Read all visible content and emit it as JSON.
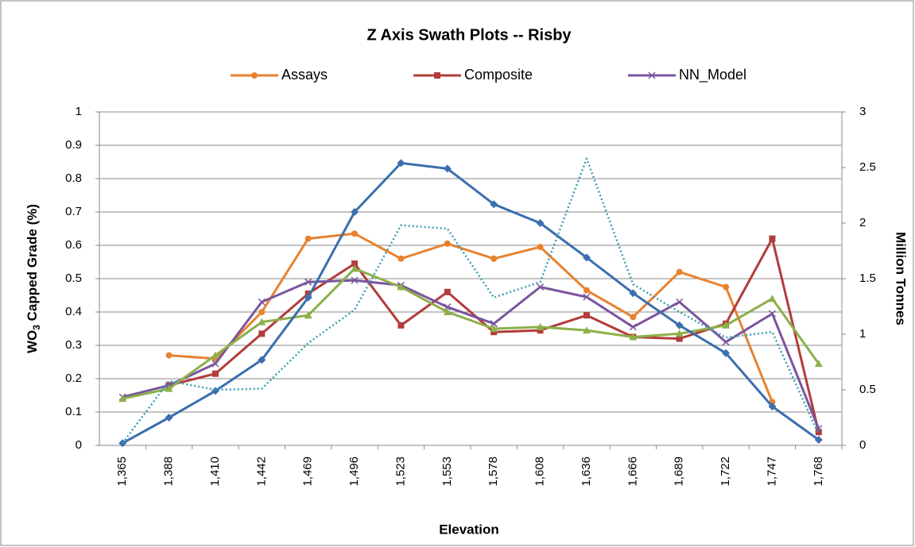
{
  "chart_data": {
    "type": "line",
    "title": "Z Axis Swath Plots -- Risby",
    "x_label": "Elevation",
    "y_label": {
      "main": "WO",
      "sub": "3",
      "rest": " Capped Grade (%)"
    },
    "y2_label": "Million Tonnes",
    "categories": [
      "1,365",
      "1,388",
      "1,410",
      "1,442",
      "1,469",
      "1,496",
      "1,523",
      "1,553",
      "1,578",
      "1,608",
      "1,636",
      "1,666",
      "1,689",
      "1,722",
      "1,747",
      "1,768"
    ],
    "ylim": [
      0,
      1
    ],
    "yticks": [
      0,
      0.1,
      0.2,
      0.3,
      0.4,
      0.5,
      0.6,
      0.7,
      0.8,
      0.9,
      1
    ],
    "y2lim": [
      0,
      3
    ],
    "y2ticks": [
      0,
      0.5,
      1,
      1.5,
      2,
      2.5,
      3
    ],
    "grid": true,
    "legend": "top",
    "series": [
      {
        "name": "Assays",
        "color": "#e8822f",
        "marker": "circle",
        "values": [
          null,
          0.27,
          0.26,
          0.4,
          0.62,
          0.635,
          0.56,
          0.605,
          0.56,
          0.595,
          0.465,
          0.385,
          0.52,
          0.475,
          0.13,
          null
        ]
      },
      {
        "name": "Composite",
        "color": "#b23c3a",
        "marker": "square",
        "values": [
          null,
          0.18,
          0.215,
          0.335,
          0.455,
          0.545,
          0.36,
          0.46,
          0.34,
          0.345,
          0.39,
          0.325,
          0.32,
          0.365,
          0.62,
          0.04
        ]
      },
      {
        "name": "NN_Model",
        "color": "#7a559e",
        "marker": "x",
        "values": [
          0.145,
          0.18,
          0.245,
          0.43,
          0.49,
          0.495,
          0.48,
          0.415,
          0.365,
          0.475,
          0.445,
          0.355,
          0.43,
          0.31,
          0.395,
          0.05
        ]
      },
      {
        "color": "#8cb04a",
        "marker": "triangle",
        "values": [
          0.14,
          0.17,
          0.27,
          0.37,
          0.39,
          0.53,
          0.475,
          0.4,
          0.35,
          0.355,
          0.345,
          0.325,
          0.335,
          0.36,
          0.44,
          0.245
        ]
      },
      {
        "color": "#3b6fae",
        "marker": "diamond",
        "axis": "y2",
        "values": [
          0.02,
          0.25,
          0.49,
          0.77,
          1.33,
          2.1,
          2.54,
          2.49,
          2.17,
          2.0,
          1.69,
          1.37,
          1.08,
          0.83,
          0.35,
          0.05
        ]
      },
      {
        "color": "#3aa0b0",
        "dash": "dotted",
        "axis": "y2",
        "values": [
          0.02,
          0.58,
          0.5,
          0.51,
          0.92,
          1.22,
          1.98,
          1.95,
          1.33,
          1.47,
          2.58,
          1.45,
          1.2,
          0.97,
          1.02,
          0.1
        ]
      }
    ]
  }
}
